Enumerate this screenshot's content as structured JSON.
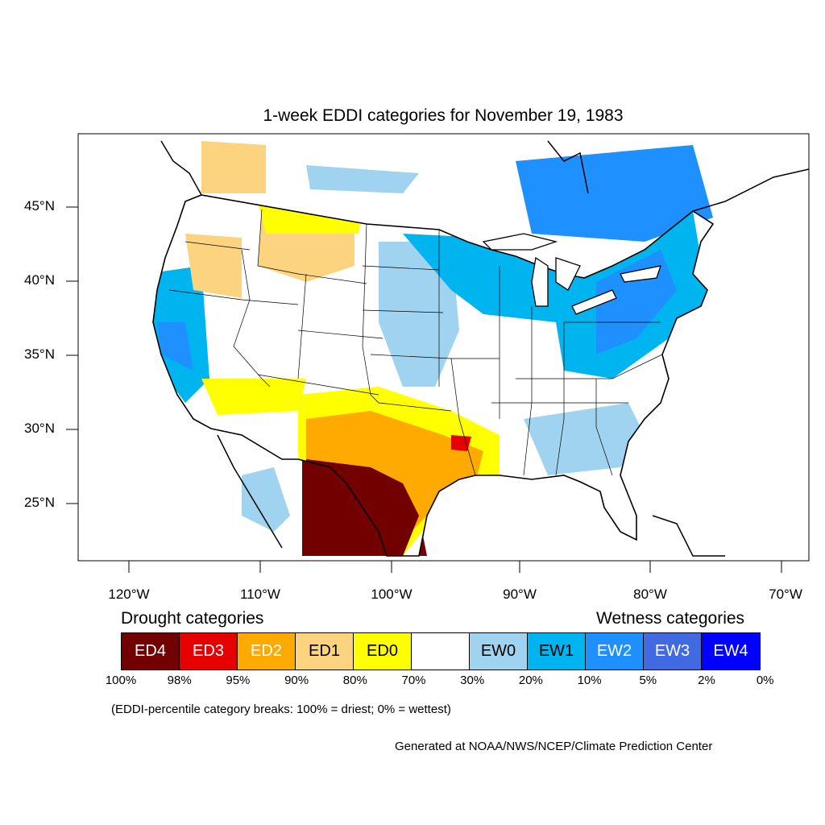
{
  "title": "1-week EDDI categories for November 19, 1983",
  "lat_labels": [
    "45°N",
    "40°N",
    "35°N",
    "30°N",
    "25°N"
  ],
  "lon_labels": [
    "120°W",
    "110°W",
    "100°W",
    "90°W",
    "80°W",
    "70°W"
  ],
  "legend": {
    "drought_header": "Drought categories",
    "wetness_header": "Wetness categories",
    "categories": [
      {
        "label": "ED4",
        "color": "#730000"
      },
      {
        "label": "ED3",
        "color": "#e60000"
      },
      {
        "label": "ED2",
        "color": "#ffaa00"
      },
      {
        "label": "ED1",
        "color": "#fcd37f"
      },
      {
        "label": "ED0",
        "color": "#ffff00"
      },
      {
        "label": "",
        "color": "#ffffff"
      },
      {
        "label": "EW0",
        "color": "#9fd3ef"
      },
      {
        "label": "EW1",
        "color": "#00b4f0"
      },
      {
        "label": "EW2",
        "color": "#1e90ff"
      },
      {
        "label": "EW3",
        "color": "#4169e1"
      },
      {
        "label": "EW4",
        "color": "#0000ff"
      }
    ],
    "percent_breaks": [
      "100%",
      "98%",
      "95%",
      "90%",
      "80%",
      "70%",
      "30%",
      "20%",
      "10%",
      "5%",
      "2%",
      "0%"
    ]
  },
  "note": "(EDDI-percentile category breaks: 100% = driest; 0% = wettest)",
  "credit": "Generated at NOAA/NWS/NCEP/Climate Prediction Center"
}
